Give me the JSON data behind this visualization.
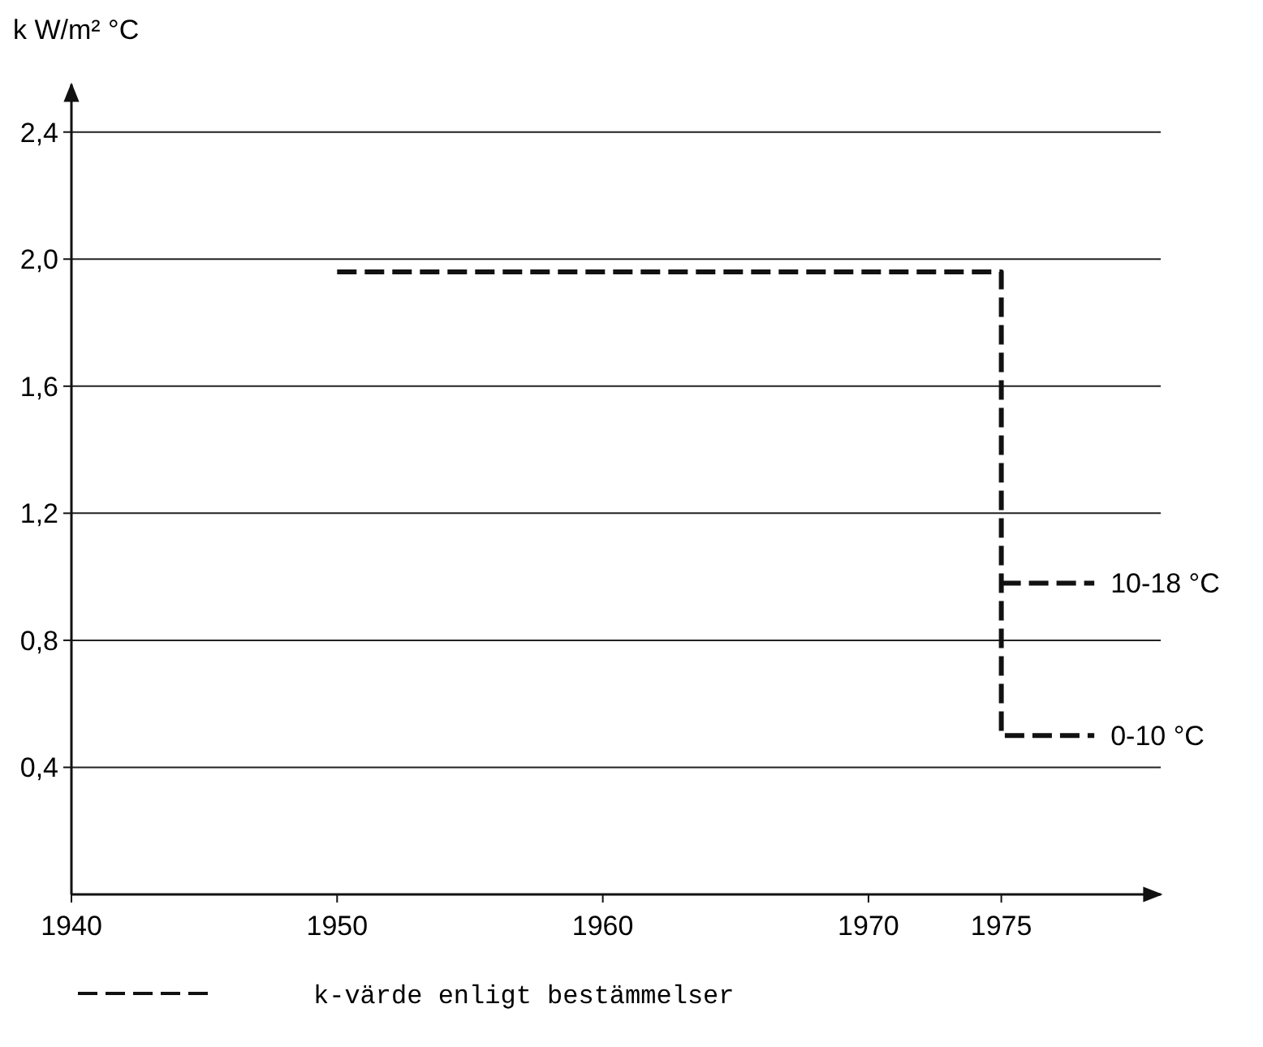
{
  "chart_data": {
    "type": "line",
    "ylabel": "k W/m² °C",
    "xlim": [
      1940,
      1981
    ],
    "ylim": [
      0,
      2.55
    ],
    "xticks": [
      1940,
      1950,
      1960,
      1970,
      1975
    ],
    "yticks": [
      {
        "value": 0.4,
        "label": "0,4"
      },
      {
        "value": 0.8,
        "label": "0,8"
      },
      {
        "value": 1.2,
        "label": "1,2"
      },
      {
        "value": 1.6,
        "label": "1,6"
      },
      {
        "value": 2.0,
        "label": "2,0"
      },
      {
        "value": 2.4,
        "label": "2,4"
      }
    ],
    "series": [
      {
        "name": "k-värde enligt bestämmelser",
        "color": "#111111",
        "x": [
          1950,
          1975,
          1975,
          1978.5
        ],
        "values": [
          1.96,
          1.96,
          0.5,
          0.5
        ]
      },
      {
        "color": "#111111",
        "x": [
          1975,
          1978.5
        ],
        "values": [
          0.98,
          0.98
        ]
      }
    ],
    "annotations": [
      {
        "text": "10-18 °C",
        "x": 1978.5,
        "y": 0.98
      },
      {
        "text": "0-10 °C",
        "x": 1978.5,
        "y": 0.5
      }
    ],
    "grid": "y",
    "legend": "bottom",
    "line_style": "dashed",
    "marker": "none"
  }
}
